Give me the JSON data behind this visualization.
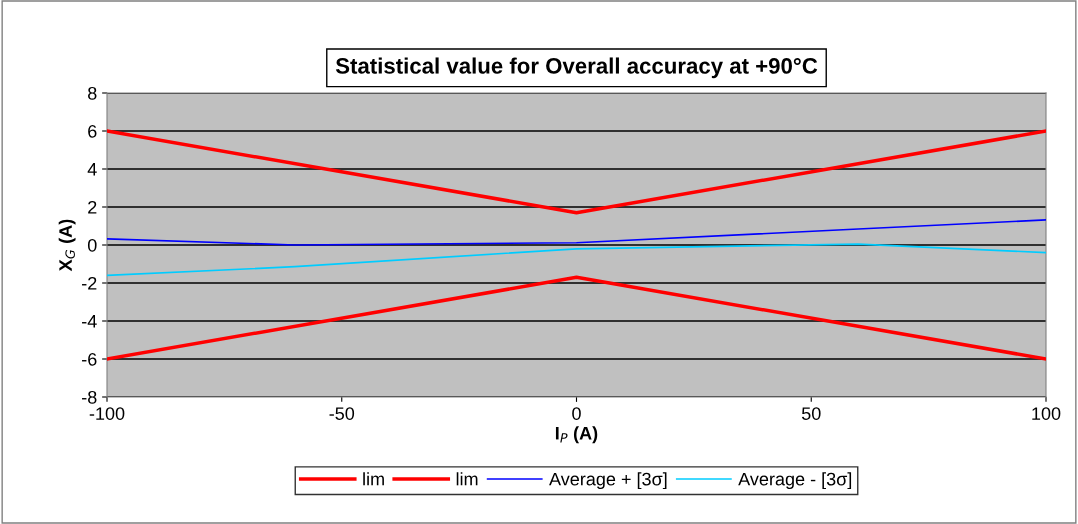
{
  "chart_data": {
    "type": "line",
    "title": "Statistical value for Overall accuracy at +90°C",
    "xlabel": "I$_{P}$ (A)",
    "ylabel": "X$_{G}$ (A)",
    "x": [
      -100,
      -60,
      0,
      60,
      100
    ],
    "series": [
      {
        "name": "lim",
        "color": "#ff0000",
        "x": [
          -100,
          0,
          100
        ],
        "values": [
          6,
          1.7,
          6
        ]
      },
      {
        "name": "lim",
        "color": "#ff0000",
        "x": [
          -100,
          0,
          100
        ],
        "values": [
          -6,
          -1.7,
          -6
        ]
      },
      {
        "name": "Average + [3σ]",
        "color": "#0000ff",
        "values": [
          0.32,
          0.0,
          0.12,
          0.84,
          1.32
        ]
      },
      {
        "name": "Average - [3σ]",
        "color": "#00ccff",
        "values": [
          -1.6,
          -1.14,
          -0.2,
          0.05,
          -0.4
        ]
      }
    ],
    "xlim": [
      -100,
      100
    ],
    "xticks": [
      -100,
      -50,
      0,
      50,
      100
    ],
    "ylim": [
      -8,
      8
    ],
    "yticks": [
      -8,
      -6,
      -4,
      -2,
      0,
      2,
      4,
      6,
      8
    ],
    "grid": "y",
    "legend": "bottom",
    "marker": "none",
    "line_style": "solid"
  }
}
